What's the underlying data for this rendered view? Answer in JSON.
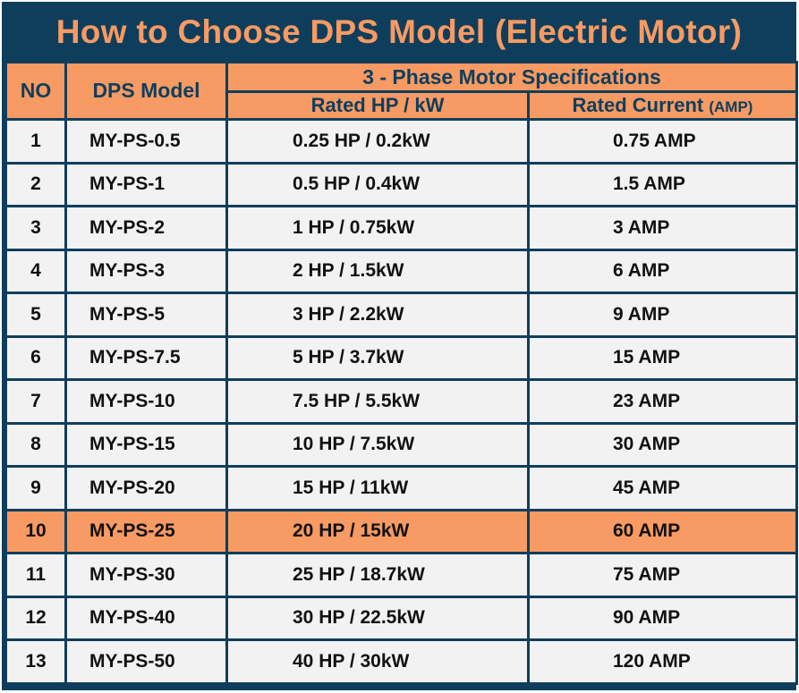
{
  "title": "How to Choose DPS Model (Electric Motor)",
  "colors": {
    "navy": "#0f3e5c",
    "orange": "#f79a63",
    "row_bg": "#f2f2f2"
  },
  "headers": {
    "no": "NO",
    "model": "DPS Model",
    "group": "3 - Phase Motor Specifications",
    "hp": "Rated HP / kW",
    "current": "Rated Current",
    "current_unit": "(AMP)"
  },
  "highlighted_row": 10,
  "rows": [
    {
      "no": "1",
      "model": "MY-PS-0.5",
      "hp": "0.25 HP / 0.2kW",
      "current": "0.75 AMP"
    },
    {
      "no": "2",
      "model": "MY-PS-1",
      "hp": "0.5 HP / 0.4kW",
      "current": "1.5 AMP"
    },
    {
      "no": "3",
      "model": "MY-PS-2",
      "hp": "1 HP / 0.75kW",
      "current": "3 AMP"
    },
    {
      "no": "4",
      "model": "MY-PS-3",
      "hp": "2 HP / 1.5kW",
      "current": "6 AMP"
    },
    {
      "no": "5",
      "model": "MY-PS-5",
      "hp": "3 HP / 2.2kW",
      "current": "9 AMP"
    },
    {
      "no": "6",
      "model": "MY-PS-7.5",
      "hp": "5 HP / 3.7kW",
      "current": "15 AMP"
    },
    {
      "no": "7",
      "model": "MY-PS-10",
      "hp": "7.5 HP / 5.5kW",
      "current": "23 AMP"
    },
    {
      "no": "8",
      "model": "MY-PS-15",
      "hp": "10 HP / 7.5kW",
      "current": "30 AMP"
    },
    {
      "no": "9",
      "model": "MY-PS-20",
      "hp": "15 HP / 11kW",
      "current": "45 AMP"
    },
    {
      "no": "10",
      "model": "MY-PS-25",
      "hp": "20 HP / 15kW",
      "current": "60 AMP"
    },
    {
      "no": "11",
      "model": "MY-PS-30",
      "hp": "25 HP / 18.7kW",
      "current": "75 AMP"
    },
    {
      "no": "12",
      "model": "MY-PS-40",
      "hp": "30 HP / 22.5kW",
      "current": "90 AMP"
    },
    {
      "no": "13",
      "model": "MY-PS-50",
      "hp": "40 HP / 30kW",
      "current": "120 AMP"
    }
  ]
}
